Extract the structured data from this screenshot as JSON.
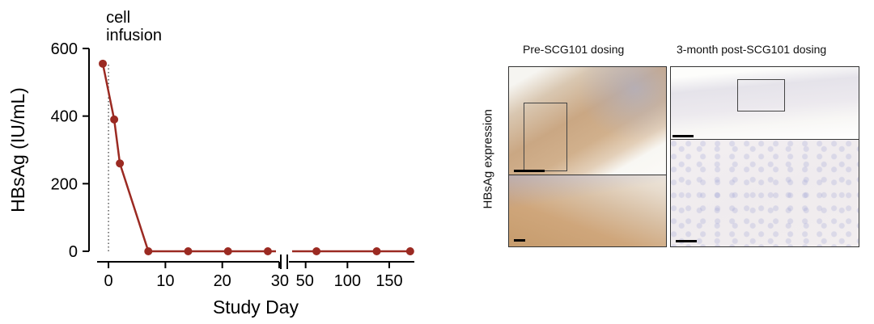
{
  "chart_data": {
    "type": "line",
    "xlabel": "Study Day",
    "ylabel": "HBsAg (IU/mL)",
    "ylim": [
      0,
      600
    ],
    "y_ticks": [
      0,
      200,
      400,
      600
    ],
    "x_segments": [
      {
        "range": [
          -2,
          30
        ],
        "ticks": [
          0,
          10,
          20,
          30
        ]
      },
      {
        "range": [
          30,
          180
        ],
        "ticks": [
          50,
          100,
          150
        ]
      }
    ],
    "x_tick_labels": [
      "0",
      "10",
      "20",
      "30",
      "50",
      "100",
      "150"
    ],
    "y_tick_labels": [
      "0",
      "200",
      "400",
      "600"
    ],
    "annotation": {
      "text_lines": [
        "cell",
        "infusion"
      ],
      "x": 0
    },
    "series": [
      {
        "x": [
          -1,
          1,
          2,
          7,
          14,
          21,
          28,
          63,
          135,
          175
        ],
        "y": [
          555,
          390,
          260,
          0,
          0,
          0,
          0,
          0,
          0,
          0
        ]
      }
    ],
    "color": "#9b2a22"
  },
  "panels": {
    "left_title": "Pre-SCG101 dosing",
    "right_title": "3-month post-SCG101 dosing",
    "row_label": "HBsAg expression"
  }
}
